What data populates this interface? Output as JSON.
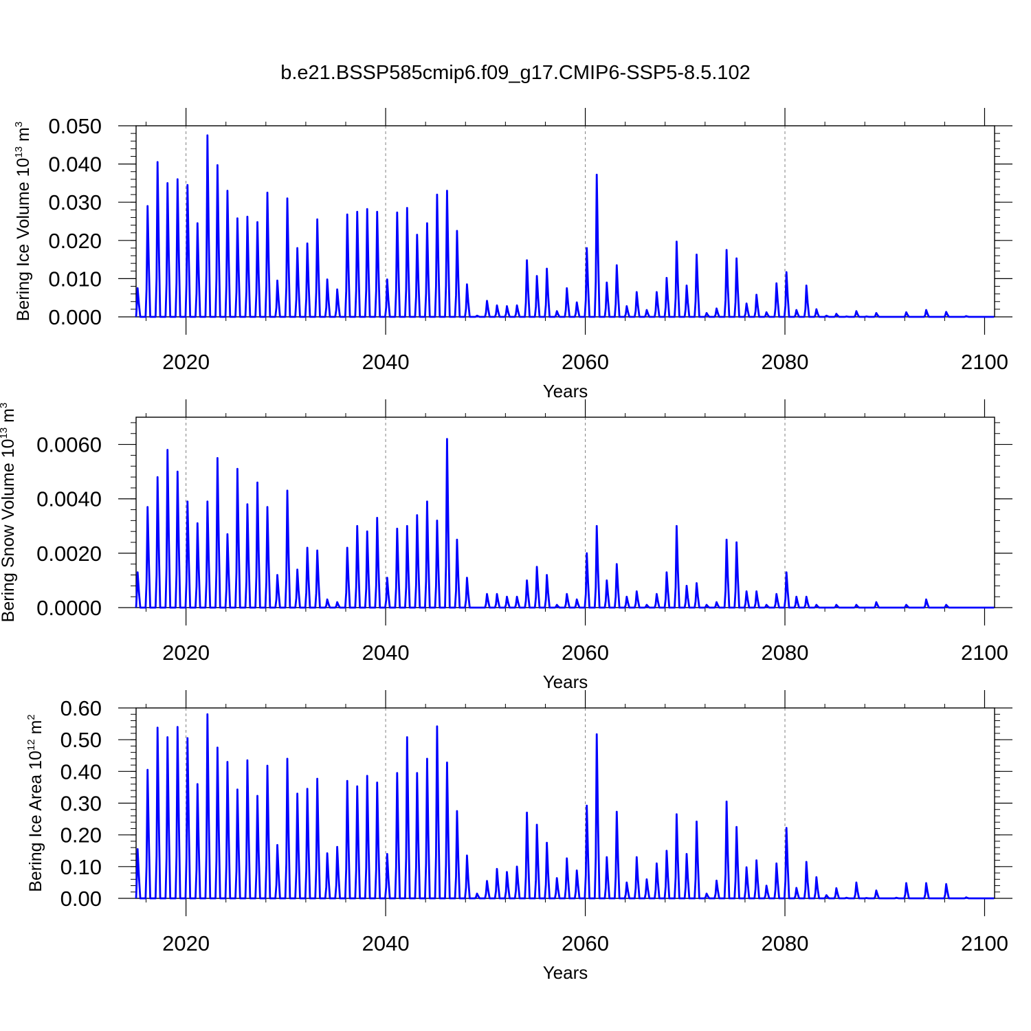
{
  "title": "b.e21.BSSP585cmip6.f09_g17.CMIP6-SSP5-8.5.102",
  "colors": {
    "series": "#0000ff",
    "axes": "#000000",
    "refline": "#808080"
  },
  "chart_data": [
    {
      "type": "line",
      "title": "b.e21.BSSP585cmip6.f09_g17.CMIP6-SSP5-8.5.102",
      "ylabel_main": "Bering Ice Volume 10",
      "ylabel_exp": "13",
      "ylabel_unit": " m",
      "ylabel_unit_exp": "3",
      "xlabel": "Years",
      "xlim": [
        2015,
        2101
      ],
      "ylim": [
        0,
        0.05
      ],
      "xticks": [
        2020,
        2040,
        2060,
        2080,
        2100
      ],
      "yticks": [
        0,
        0.01,
        0.02,
        0.03,
        0.04,
        0.05
      ],
      "ytick_labels": [
        "0.000",
        "0.010",
        "0.020",
        "0.030",
        "0.040",
        "0.050"
      ],
      "reference_years": [
        2020,
        2040,
        2060,
        2080
      ],
      "series": [
        {
          "name": "Bering Ice Volume",
          "peak_years": [
            2015,
            2016,
            2017,
            2018,
            2019,
            2020,
            2021,
            2022,
            2023,
            2024,
            2025,
            2026,
            2027,
            2028,
            2029,
            2030,
            2031,
            2032,
            2033,
            2034,
            2035,
            2036,
            2037,
            2038,
            2039,
            2040,
            2041,
            2042,
            2043,
            2044,
            2045,
            2046,
            2047,
            2048,
            2049,
            2050,
            2051,
            2052,
            2053,
            2054,
            2055,
            2056,
            2057,
            2058,
            2059,
            2060,
            2061,
            2062,
            2063,
            2064,
            2065,
            2066,
            2067,
            2068,
            2069,
            2070,
            2071,
            2072,
            2073,
            2074,
            2075,
            2076,
            2077,
            2078,
            2079,
            2080,
            2081,
            2082,
            2083,
            2084,
            2085,
            2086,
            2087,
            2088,
            2089,
            2090,
            2091,
            2092,
            2093,
            2094,
            2095,
            2096,
            2097,
            2098,
            2099,
            2100
          ],
          "peak_values": [
            0.0075,
            0.029,
            0.0405,
            0.035,
            0.036,
            0.0345,
            0.0245,
            0.0475,
            0.0397,
            0.033,
            0.0258,
            0.0262,
            0.0248,
            0.0325,
            0.0095,
            0.031,
            0.018,
            0.0192,
            0.0255,
            0.0098,
            0.0072,
            0.0268,
            0.0275,
            0.0282,
            0.0275,
            0.0098,
            0.0273,
            0.0285,
            0.0215,
            0.0245,
            0.032,
            0.033,
            0.0225,
            0.0085,
            0.0003,
            0.0042,
            0.003,
            0.0028,
            0.003,
            0.0148,
            0.0107,
            0.0126,
            0.0015,
            0.0075,
            0.0038,
            0.018,
            0.0372,
            0.009,
            0.0135,
            0.0028,
            0.0065,
            0.0018,
            0.0065,
            0.0102,
            0.0197,
            0.0082,
            0.0163,
            0.001,
            0.0022,
            0.0175,
            0.0153,
            0.0035,
            0.0058,
            0.0012,
            0.0088,
            0.0117,
            0.0018,
            0.0082,
            0.002,
            0.0003,
            0.0008,
            0.0001,
            0.0015,
            0.0001,
            0.001,
            0.0,
            0.0,
            0.0012,
            0.0,
            0.0018,
            0.0,
            0.0013,
            0.0,
            0.0002,
            0.0,
            0.0
          ]
        }
      ]
    },
    {
      "type": "line",
      "ylabel_main": "Bering Snow Volume 10",
      "ylabel_exp": "13",
      "ylabel_unit": " m",
      "ylabel_unit_exp": "3",
      "xlabel": "Years",
      "xlim": [
        2015,
        2101
      ],
      "ylim": [
        0,
        0.007
      ],
      "xticks": [
        2020,
        2040,
        2060,
        2080,
        2100
      ],
      "yticks": [
        0,
        0.002,
        0.004,
        0.006
      ],
      "ytick_labels": [
        "0.0000",
        "0.0020",
        "0.0040",
        "0.0060"
      ],
      "reference_years": [
        2020,
        2040,
        2060,
        2080
      ],
      "series": [
        {
          "name": "Bering Snow Volume",
          "peak_years": [
            2015,
            2016,
            2017,
            2018,
            2019,
            2020,
            2021,
            2022,
            2023,
            2024,
            2025,
            2026,
            2027,
            2028,
            2029,
            2030,
            2031,
            2032,
            2033,
            2034,
            2035,
            2036,
            2037,
            2038,
            2039,
            2040,
            2041,
            2042,
            2043,
            2044,
            2045,
            2046,
            2047,
            2048,
            2049,
            2050,
            2051,
            2052,
            2053,
            2054,
            2055,
            2056,
            2057,
            2058,
            2059,
            2060,
            2061,
            2062,
            2063,
            2064,
            2065,
            2066,
            2067,
            2068,
            2069,
            2070,
            2071,
            2072,
            2073,
            2074,
            2075,
            2076,
            2077,
            2078,
            2079,
            2080,
            2081,
            2082,
            2083,
            2084,
            2085,
            2086,
            2087,
            2088,
            2089,
            2090,
            2091,
            2092,
            2093,
            2094,
            2095,
            2096,
            2097,
            2098,
            2099,
            2100
          ],
          "peak_values": [
            0.0013,
            0.0037,
            0.0048,
            0.0058,
            0.005,
            0.0039,
            0.0031,
            0.0039,
            0.0055,
            0.0027,
            0.0051,
            0.0038,
            0.0046,
            0.0037,
            0.0012,
            0.0043,
            0.0014,
            0.0022,
            0.0021,
            0.0003,
            0.0002,
            0.0022,
            0.003,
            0.0028,
            0.0033,
            0.0011,
            0.0029,
            0.003,
            0.0034,
            0.0039,
            0.0032,
            0.0062,
            0.0025,
            0.0011,
            0.0,
            0.0005,
            0.0005,
            0.0004,
            0.0004,
            0.001,
            0.0015,
            0.0012,
            0.0001,
            0.0005,
            0.0003,
            0.002,
            0.003,
            0.001,
            0.0016,
            0.0004,
            0.0006,
            0.0001,
            0.0005,
            0.0013,
            0.003,
            0.0008,
            0.0009,
            0.0001,
            0.0002,
            0.0025,
            0.0024,
            0.0006,
            0.0006,
            0.0001,
            0.0005,
            0.0013,
            0.0004,
            0.0004,
            0.0001,
            0.0,
            0.0001,
            0.0,
            0.0001,
            0.0,
            0.0002,
            0.0,
            0.0,
            0.0001,
            0.0,
            0.0003,
            0.0,
            0.0001,
            0.0,
            0.0,
            0.0,
            0.0
          ]
        }
      ]
    },
    {
      "type": "line",
      "ylabel_main": "Bering Ice Area 10",
      "ylabel_exp": "12",
      "ylabel_unit": " m",
      "ylabel_unit_exp": "2",
      "xlabel": "Years",
      "xlim": [
        2015,
        2101
      ],
      "ylim": [
        0,
        0.6
      ],
      "xticks": [
        2020,
        2040,
        2060,
        2080,
        2100
      ],
      "yticks": [
        0,
        0.1,
        0.2,
        0.3,
        0.4,
        0.5,
        0.6
      ],
      "ytick_labels": [
        "0.00",
        "0.10",
        "0.20",
        "0.30",
        "0.40",
        "0.50",
        "0.60"
      ],
      "reference_years": [
        2020,
        2040,
        2060,
        2080
      ],
      "series": [
        {
          "name": "Bering Ice Area",
          "peak_years": [
            2015,
            2016,
            2017,
            2018,
            2019,
            2020,
            2021,
            2022,
            2023,
            2024,
            2025,
            2026,
            2027,
            2028,
            2029,
            2030,
            2031,
            2032,
            2033,
            2034,
            2035,
            2036,
            2037,
            2038,
            2039,
            2040,
            2041,
            2042,
            2043,
            2044,
            2045,
            2046,
            2047,
            2048,
            2049,
            2050,
            2051,
            2052,
            2053,
            2054,
            2055,
            2056,
            2057,
            2058,
            2059,
            2060,
            2061,
            2062,
            2063,
            2064,
            2065,
            2066,
            2067,
            2068,
            2069,
            2070,
            2071,
            2072,
            2073,
            2074,
            2075,
            2076,
            2077,
            2078,
            2079,
            2080,
            2081,
            2082,
            2083,
            2084,
            2085,
            2086,
            2087,
            2088,
            2089,
            2090,
            2091,
            2092,
            2093,
            2094,
            2095,
            2096,
            2097,
            2098,
            2099,
            2100
          ],
          "peak_values": [
            0.155,
            0.405,
            0.538,
            0.508,
            0.54,
            0.505,
            0.36,
            0.58,
            0.475,
            0.43,
            0.343,
            0.435,
            0.323,
            0.418,
            0.168,
            0.44,
            0.33,
            0.345,
            0.377,
            0.142,
            0.162,
            0.37,
            0.353,
            0.386,
            0.365,
            0.14,
            0.395,
            0.508,
            0.395,
            0.44,
            0.542,
            0.428,
            0.275,
            0.135,
            0.015,
            0.055,
            0.093,
            0.083,
            0.1,
            0.27,
            0.232,
            0.175,
            0.064,
            0.126,
            0.088,
            0.292,
            0.517,
            0.13,
            0.273,
            0.05,
            0.13,
            0.06,
            0.11,
            0.15,
            0.265,
            0.14,
            0.242,
            0.015,
            0.056,
            0.305,
            0.225,
            0.098,
            0.12,
            0.04,
            0.11,
            0.222,
            0.033,
            0.115,
            0.067,
            0.01,
            0.032,
            0.002,
            0.05,
            0.001,
            0.025,
            0.0,
            0.002,
            0.048,
            0.0,
            0.048,
            0.0,
            0.045,
            0.0,
            0.003,
            0.0,
            0.0
          ]
        }
      ]
    }
  ]
}
